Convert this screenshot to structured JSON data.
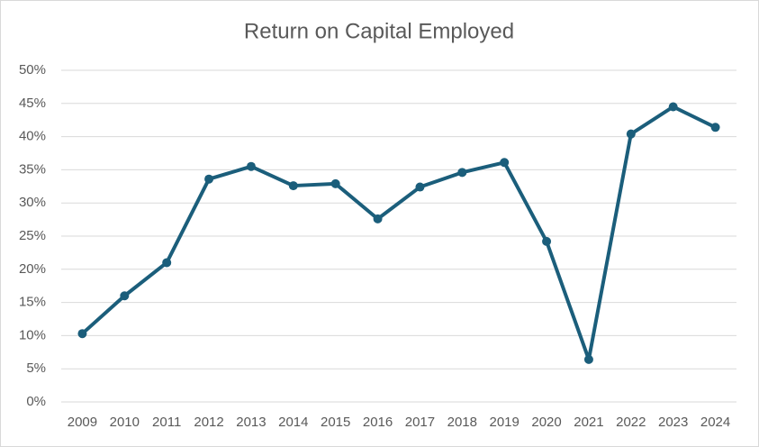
{
  "chart_data": {
    "type": "line",
    "title": "Return on Capital Employed",
    "categories": [
      "2009",
      "2010",
      "2011",
      "2012",
      "2013",
      "2014",
      "2015",
      "2016",
      "2017",
      "2018",
      "2019",
      "2020",
      "2021",
      "2022",
      "2023",
      "2024"
    ],
    "series": [
      {
        "name": "Return on Capital Employed",
        "color": "#1b5e7b",
        "values": [
          10.3,
          16.0,
          21.0,
          33.6,
          35.5,
          32.6,
          32.9,
          27.6,
          32.4,
          34.6,
          36.1,
          24.2,
          6.4,
          40.4,
          44.5,
          41.4
        ]
      }
    ],
    "ylim": [
      0,
      50
    ],
    "yticks": [
      {
        "value": 0,
        "label": "0%"
      },
      {
        "value": 5,
        "label": "5%"
      },
      {
        "value": 10,
        "label": "10%"
      },
      {
        "value": 15,
        "label": "15%"
      },
      {
        "value": 20,
        "label": "20%"
      },
      {
        "value": 25,
        "label": "25%"
      },
      {
        "value": 30,
        "label": "30%"
      },
      {
        "value": 35,
        "label": "35%"
      },
      {
        "value": 40,
        "label": "40%"
      },
      {
        "value": 45,
        "label": "45%"
      },
      {
        "value": 50,
        "label": "50%"
      }
    ],
    "grid": true
  }
}
